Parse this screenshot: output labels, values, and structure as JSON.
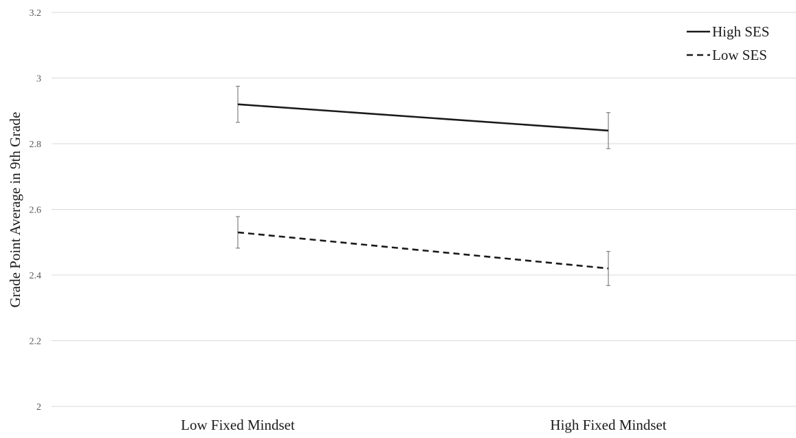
{
  "chart_data": {
    "type": "line",
    "title": "",
    "xlabel": "",
    "ylabel": "Grade Point Average in 9th Grade",
    "categories": [
      "Low Fixed Mindset",
      "High Fixed Mindset"
    ],
    "ylim": [
      2,
      3.2
    ],
    "yticks": [
      2,
      2.2,
      2.4,
      2.6,
      2.8,
      3,
      3.2
    ],
    "ytick_labels": [
      "2",
      "2.2",
      "2.4",
      "2.6",
      "2.8",
      "3",
      "3.2"
    ],
    "grid": true,
    "legend_position": "top-right",
    "series": [
      {
        "name": "High SES",
        "style": "solid",
        "color": "#1a1a1a",
        "values": [
          2.92,
          2.84
        ],
        "error": [
          0.055,
          0.055
        ]
      },
      {
        "name": "Low SES",
        "style": "dashed",
        "color": "#1a1a1a",
        "values": [
          2.53,
          2.42
        ],
        "error": [
          0.048,
          0.052
        ]
      }
    ]
  }
}
